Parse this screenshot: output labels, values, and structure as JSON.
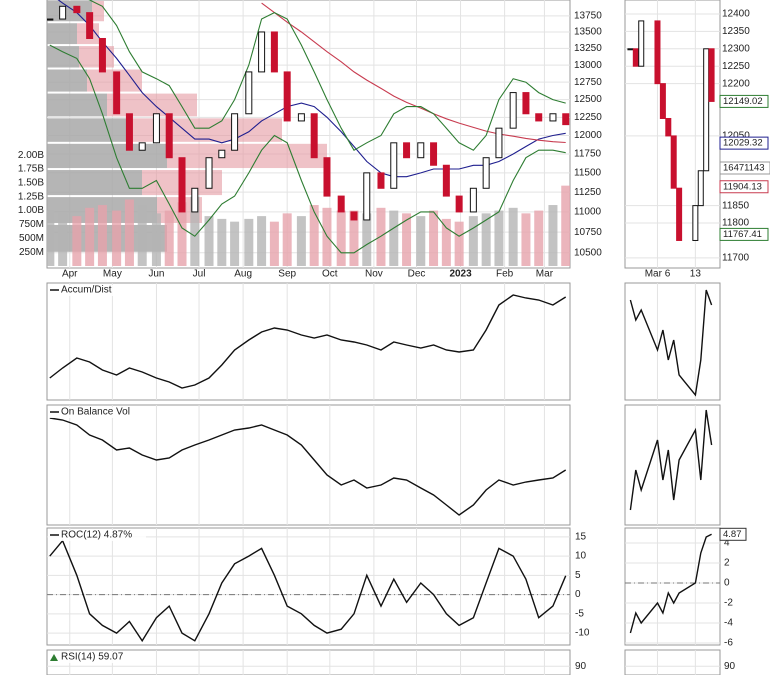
{
  "chart_data": [
    {
      "type": "stock",
      "x": [
        -14,
        -5,
        5,
        14,
        23,
        33,
        42,
        51,
        61,
        70,
        79,
        88,
        98,
        107,
        116,
        126,
        135,
        144,
        153,
        163,
        172,
        181,
        191,
        200,
        209,
        219,
        228,
        237,
        247,
        256,
        265,
        274,
        284,
        293,
        302,
        312,
        321,
        330,
        340,
        349
      ],
      "xlim": [
        -16,
        352
      ],
      "xticks": [
        {
          "value": 0,
          "label": "Apr"
        },
        {
          "value": 30,
          "label": "May"
        },
        {
          "value": 61,
          "label": "Jun"
        },
        {
          "value": 91,
          "label": "Jul"
        },
        {
          "value": 122,
          "label": "Aug"
        },
        {
          "value": 153,
          "label": "Sep"
        },
        {
          "value": 183,
          "label": "Oct"
        },
        {
          "value": 214,
          "label": "Nov"
        },
        {
          "value": 244,
          "label": "Dec"
        },
        {
          "value": 275,
          "label": "2023",
          "bold": true
        },
        {
          "value": 306,
          "label": "Feb"
        },
        {
          "value": 334,
          "label": "Mar"
        }
      ],
      "values": [
        13700,
        13900,
        13800,
        13400,
        12900,
        12300,
        11800,
        11900,
        12300,
        11700,
        11000,
        11300,
        11700,
        11800,
        12300,
        12900,
        13500,
        12900,
        12200,
        12300,
        11700,
        11200,
        11000,
        10900,
        11500,
        11300,
        11900,
        11700,
        11900,
        11600,
        11200,
        11000,
        11300,
        11700,
        12100,
        12600,
        12300,
        12200,
        12300,
        12149
      ],
      "up_color": "#111111",
      "down_color": "#c8102e",
      "ylim": [
        10320,
        14000
      ],
      "log_scale": true,
      "grid": true,
      "yticks": [
        10500,
        10750,
        11000,
        11250,
        11500,
        11750,
        12000,
        12250,
        12500,
        12750,
        13000,
        13250,
        13500,
        13750
      ],
      "overlays": [
        {
          "color": "#1f1f8f",
          "values": [
            14100,
            13950,
            13800,
            13600,
            13350,
            13100,
            12850,
            12600,
            12400,
            12250,
            12100,
            11950,
            11950,
            11900,
            11950,
            12050,
            12200,
            12300,
            12400,
            12450,
            12400,
            12250,
            12050,
            11850,
            11650,
            11500,
            11450,
            11450,
            11500,
            11550,
            11550,
            11550,
            11600,
            11600,
            11650,
            11750,
            11850,
            11950,
            12000,
            12029
          ]
        },
        {
          "color": "#c83c50",
          "values": [
            null,
            null,
            null,
            null,
            null,
            null,
            null,
            null,
            null,
            null,
            null,
            null,
            null,
            null,
            null,
            null,
            13950,
            13800,
            13650,
            13500,
            13350,
            13200,
            13050,
            12900,
            12780,
            12660,
            12550,
            12460,
            12380,
            12300,
            12230,
            12170,
            12110,
            12060,
            12020,
            11990,
            11960,
            11935,
            11915,
            11904
          ]
        },
        {
          "color": "#2e7d32",
          "values": [
            14300,
            14200,
            14100,
            14000,
            13900,
            13600,
            13200,
            12900,
            12800,
            12700,
            12400,
            12100,
            12100,
            12200,
            12500,
            13000,
            13700,
            13800,
            13700,
            13300,
            12900,
            12500,
            12100,
            11800,
            11900,
            12000,
            12300,
            12400,
            12400,
            12300,
            12100,
            11900,
            11800,
            12000,
            12500,
            12800,
            12750,
            12600,
            12500,
            12450
          ]
        },
        {
          "color": "#2e7d32",
          "values": [
            13300,
            13200,
            13100,
            12800,
            12300,
            11700,
            11300,
            11300,
            11400,
            11100,
            10800,
            10700,
            10900,
            11100,
            11200,
            11500,
            11800,
            12000,
            11900,
            11400,
            11000,
            10700,
            10500,
            10500,
            10600,
            10700,
            10800,
            10900,
            11000,
            11000,
            10800,
            10700,
            10800,
            10900,
            11000,
            11400,
            11700,
            11800,
            11800,
            11767
          ]
        }
      ],
      "volume": {
        "up_color": "#b4b4b4",
        "down_color": "#e6a3ab",
        "values": [
          1000000000,
          950000000,
          900000000,
          1050000000,
          1100000000,
          1000000000,
          1200000000,
          1100000000,
          950000000,
          1000000000,
          1150000000,
          1250000000,
          900000000,
          850000000,
          800000000,
          850000000,
          900000000,
          800000000,
          950000000,
          900000000,
          1100000000,
          1050000000,
          1000000000,
          1000000000,
          950000000,
          1050000000,
          1000000000,
          950000000,
          900000000,
          1000000000,
          850000000,
          800000000,
          900000000,
          950000000,
          1000000000,
          1050000000,
          950000000,
          1000000000,
          1100000000,
          1450000000
        ],
        "ylim": [
          0,
          4800000000
        ],
        "yticks": [
          {
            "value": 250000000,
            "label": "250M"
          },
          {
            "value": 500000000,
            "label": "500M"
          },
          {
            "value": 750000000,
            "label": "750M"
          },
          {
            "value": 1000000000,
            "label": "1.00B"
          },
          {
            "value": 1250000000,
            "label": "1.25B"
          },
          {
            "value": 1500000000,
            "label": "1.50B"
          },
          {
            "value": 1750000000,
            "label": "1.75B"
          },
          {
            "value": 2000000000,
            "label": "2.00B"
          }
        ]
      },
      "volume_by_price": {
        "up_color": "#a8a8a8",
        "down_color": "#e59aa2",
        "edges": [
          10500,
          10850,
          11200,
          11550,
          11900,
          12250,
          12600,
          12950,
          13300,
          13650,
          14000
        ],
        "up": [
          120,
          110,
          95,
          120,
          85,
          60,
          40,
          32,
          30,
          45
        ],
        "down": [
          0,
          45,
          80,
          160,
          150,
          90,
          55,
          35,
          22,
          12
        ]
      }
    },
    {
      "type": "stock",
      "x": [
        1,
        2,
        3,
        6,
        7,
        8,
        9,
        10,
        13,
        14,
        15,
        16
      ],
      "xlim": [
        0,
        17
      ],
      "xticks": [
        {
          "value": 6,
          "label": "Mar 6"
        },
        13
      ],
      "values": [
        12300,
        12250,
        12380,
        12200,
        12100,
        12050,
        11900,
        11750,
        11850,
        11950,
        12300,
        12149
      ],
      "up_color": "#111111",
      "down_color": "#c8102e",
      "ylim": [
        11671,
        12440
      ],
      "grid": true,
      "yticks": [
        11700,
        11800,
        11850,
        12050,
        12200,
        12250,
        12300,
        12350,
        12400
      ],
      "last_values": [
        {
          "value": 12149.02,
          "color": "#2e7d32"
        },
        {
          "value": 12029.32,
          "color": "#1f1f8f"
        },
        {
          "value": 11904.13,
          "color": "#c83c50"
        },
        {
          "value": 11767.41,
          "color": "#2e7d32"
        }
      ],
      "volume_label": 16471143
    },
    {
      "type": "line",
      "title": "Accum/Dist",
      "color": "#111111",
      "ylim": [
        0,
        117
      ],
      "values": [
        22,
        32,
        42,
        38,
        30,
        25,
        32,
        28,
        22,
        18,
        12,
        15,
        22,
        35,
        50,
        60,
        68,
        72,
        70,
        65,
        62,
        65,
        60,
        58,
        55,
        50,
        58,
        55,
        52,
        55,
        50,
        48,
        50,
        70,
        95,
        105,
        102,
        100,
        95,
        103
      ],
      "detail_values": [
        100,
        80,
        90,
        50,
        70,
        40,
        60,
        25,
        5,
        40,
        110,
        95
      ],
      "detail_ylim": [
        0,
        117
      ]
    },
    {
      "type": "line",
      "title": "On Balance Vol",
      "color": "#111111",
      "ylim": [
        0,
        120
      ],
      "values": [
        107,
        105,
        100,
        90,
        85,
        75,
        77,
        70,
        65,
        67,
        75,
        80,
        85,
        90,
        95,
        97,
        100,
        95,
        90,
        80,
        65,
        50,
        40,
        45,
        37,
        40,
        47,
        45,
        37,
        30,
        20,
        10,
        20,
        35,
        45,
        40,
        43,
        45,
        47,
        55
      ],
      "detail_values": [
        15,
        55,
        35,
        85,
        45,
        75,
        25,
        65,
        95,
        45,
        115,
        80
      ],
      "detail_ylim": [
        0,
        120
      ]
    },
    {
      "type": "line",
      "title": "ROC(12) 4.87%",
      "color": "#111111",
      "ylim": [
        -13.1,
        17.3
      ],
      "yticks": [
        -10,
        -5,
        0,
        5,
        10,
        15
      ],
      "baseline": 0,
      "values": [
        10,
        14,
        5,
        -5,
        -8,
        -10,
        -7,
        -12,
        -6,
        -3,
        -10,
        -12,
        -5,
        3,
        8,
        10,
        12,
        5,
        -3,
        -5,
        -8,
        -10,
        -9,
        -5,
        5,
        -3,
        4,
        -2,
        3,
        0,
        -5,
        -8,
        -6,
        3,
        12,
        10,
        4,
        -6,
        -3,
        4.87
      ],
      "detail_values": [
        -5,
        -3,
        -4,
        -2,
        -3,
        -1,
        -2,
        -1,
        0,
        3,
        4.6,
        4.87
      ],
      "detail_ylim": [
        -6.2,
        5.5
      ],
      "detail_yticks": [
        -6,
        -4,
        -2,
        0,
        2,
        4
      ],
      "detail_last": 4.87
    },
    {
      "type": "line",
      "title": "RSI(14) 59.07",
      "color": "#111111",
      "ylim": [
        0,
        100
      ],
      "yticks": [
        90
      ],
      "detail_ylim": [
        0,
        100
      ],
      "detail_yticks": [
        90
      ]
    }
  ]
}
